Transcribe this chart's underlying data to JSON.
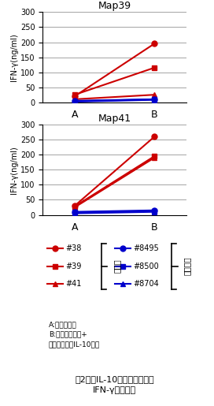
{
  "map39": {
    "title": "Map39",
    "infected": {
      "#38": {
        "A": 20,
        "B": 195,
        "marker": "o"
      },
      "#39": {
        "A": 25,
        "B": 115,
        "marker": "s"
      },
      "#41": {
        "A": 10,
        "B": 25,
        "marker": "^"
      }
    },
    "noninfected": {
      "#8495": {
        "A": 5,
        "B": 10,
        "marker": "o"
      },
      "#8500": {
        "A": 3,
        "B": 10,
        "marker": "s"
      },
      "#8704": {
        "A": 2,
        "B": 8,
        "marker": "^"
      }
    }
  },
  "map41": {
    "title": "Map41",
    "infected": {
      "#38": {
        "A": 30,
        "B": 260,
        "marker": "o"
      },
      "#39": {
        "A": 28,
        "B": 195,
        "marker": "s"
      },
      "#41": {
        "A": 25,
        "B": 190,
        "marker": "^"
      }
    },
    "noninfected": {
      "#8495": {
        "A": 10,
        "B": 15,
        "marker": "o"
      },
      "#8500": {
        "A": 8,
        "B": 13,
        "marker": "s"
      },
      "#8704": {
        "A": 5,
        "B": 10,
        "marker": "^"
      }
    }
  },
  "infected_color": "#cc0000",
  "noninfected_color": "#0000cc",
  "ylim": [
    0,
    300
  ],
  "yticks": [
    0,
    50,
    100,
    150,
    200,
    250,
    300
  ],
  "xticks": [
    "A",
    "B"
  ],
  "ylabel": "IFN-γ(ng/ml)",
  "legend_infected_label": "感染牛",
  "legend_noninfected_label": "非感染牛",
  "note_line1": "A:組換え抗原",
  "note_line2": "B:組換え抗原（+",
  "note_line3": "マウス抗ウシIL-10抗体",
  "fig_caption_line1": "図2　抗IL-10抗体添加による",
  "fig_caption_line2": "IFN-γ産生増加",
  "background_color": "#ffffff",
  "inf_entries": [
    [
      "#38",
      "o"
    ],
    [
      "#39",
      "s"
    ],
    [
      "#41",
      "^"
    ]
  ],
  "noninf_entries": [
    [
      "#8495",
      "o"
    ],
    [
      "#8500",
      "s"
    ],
    [
      "#8704",
      "^"
    ]
  ]
}
